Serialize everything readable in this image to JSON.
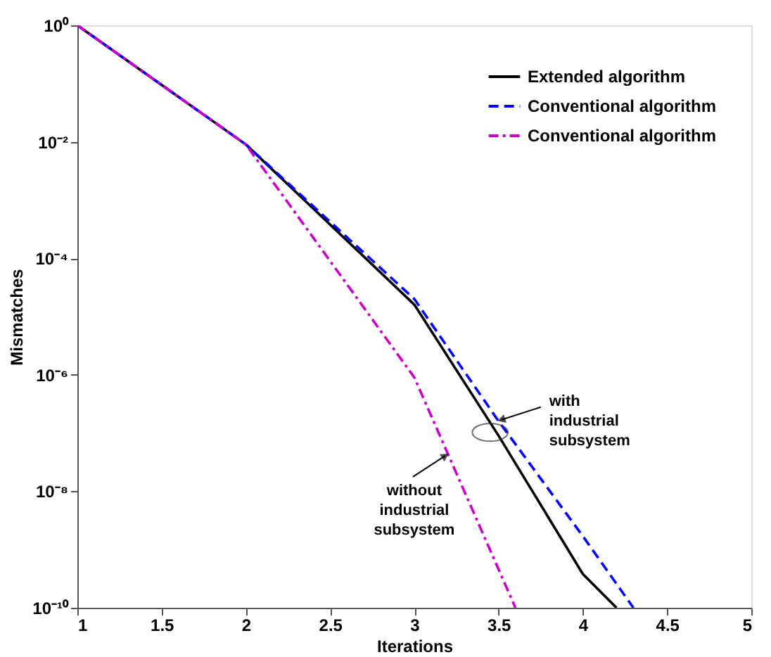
{
  "chart_data": {
    "type": "line",
    "xlabel": "Iterations",
    "ylabel": "Mismatches",
    "log": "y",
    "grid": false,
    "legend": "top right",
    "marker": "none",
    "xlim": [
      1,
      5
    ],
    "xticks": [
      1,
      1.5,
      2,
      2.5,
      3,
      3.5,
      4,
      4.5,
      5
    ],
    "ylim": [
      1e-10,
      1
    ],
    "yticks": [
      {
        "value": 1,
        "label": "10⁰"
      },
      {
        "value": 0.01,
        "label": "10⁻²"
      },
      {
        "value": 0.0001,
        "label": "10⁻⁴"
      },
      {
        "value": 1e-06,
        "label": "10⁻⁶"
      },
      {
        "value": 1e-08,
        "label": "10⁻⁸"
      },
      {
        "value": 1e-10,
        "label": "10⁻¹⁰"
      }
    ],
    "series": [
      {
        "name": "Extended algorithm",
        "color": "#000000",
        "line_style": "solid",
        "x": [
          1,
          2,
          3,
          3.5,
          4,
          4.2
        ],
        "values": [
          1,
          0.009,
          1.6e-05,
          9e-08,
          3.8e-10,
          1e-10
        ]
      },
      {
        "name": "Conventional algorithm",
        "color": "#0000ff",
        "line_style": "dashed",
        "x": [
          1,
          2,
          3,
          3.5,
          4,
          4.3
        ],
        "values": [
          1,
          0.009,
          2e-05,
          1.6e-07,
          1.7e-09,
          1e-10
        ]
      },
      {
        "name": "Conventional algorithm",
        "color": "#cc00cc",
        "line_style": "dashdot",
        "x": [
          1,
          2,
          3,
          3.6
        ],
        "values": [
          1,
          0.009,
          9e-07,
          1e-10
        ]
      }
    ],
    "annotations": [
      {
        "text": "with industrial subsystem",
        "x": 3.5,
        "y": 1.6e-07
      },
      {
        "text": "without industrial subsystem",
        "x": 3.2,
        "y": 4.3e-08
      }
    ]
  }
}
